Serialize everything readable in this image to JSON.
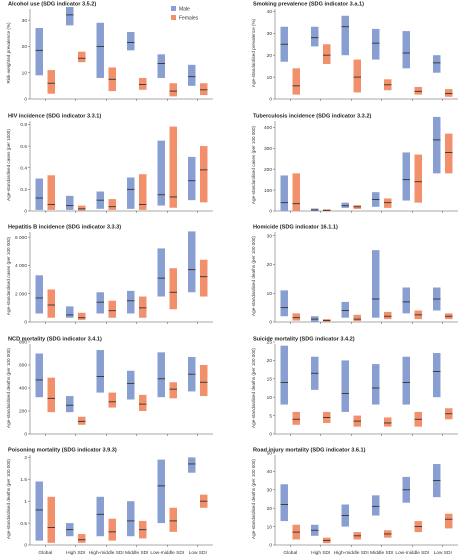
{
  "legend": {
    "male": "Male",
    "female": "Females"
  },
  "colors": {
    "male": "#8a9fd1",
    "female": "#f3906c",
    "median": "#333333"
  },
  "categories": [
    "Global",
    "High SDI",
    "High-middle SDI",
    "Middle SDI",
    "Low-middle SDI",
    "Low SDI"
  ],
  "chart_data": [
    {
      "type": "range",
      "title": "Alcohol use (SDG indicator 3.5.2)",
      "ylabel": "Risk-weighted prevalence (%)",
      "yticks": [
        0,
        10,
        20,
        30
      ],
      "ylim": [
        0,
        35
      ],
      "series": [
        {
          "name": "Male",
          "ranges": [
            [
              9,
              27,
              18.5
            ],
            [
              28,
              35,
              32
            ],
            [
              8,
              29,
              20
            ],
            [
              18.5,
              25.5,
              21.5
            ],
            [
              8,
              17,
              13.5
            ],
            [
              5,
              13,
              8.5
            ]
          ]
        },
        {
          "name": "Females",
          "ranges": [
            [
              2,
              11,
              6
            ],
            [
              14,
              18,
              15.5
            ],
            [
              3,
              12,
              7.5
            ],
            [
              3.5,
              8,
              5.5
            ],
            [
              1,
              6,
              3
            ],
            [
              1.5,
              6,
              3.5
            ]
          ]
        }
      ]
    },
    {
      "type": "range",
      "title": "Smoking prevalence (SDG indicator 3.a.1)",
      "ylabel": "Age-standardised prevalence (%)",
      "yticks": [
        0,
        10,
        20,
        30,
        40
      ],
      "ylim": [
        0,
        42
      ],
      "series": [
        {
          "name": "Male",
          "ranges": [
            [
              17,
              33,
              25
            ],
            [
              24,
              33,
              28
            ],
            [
              20,
              38,
              33
            ],
            [
              18,
              32,
              25.5
            ],
            [
              14,
              31,
              21
            ],
            [
              12,
              20,
              16.5
            ]
          ]
        },
        {
          "name": "Females",
          "ranges": [
            [
              2,
              14,
              6
            ],
            [
              16,
              25,
              20
            ],
            [
              3,
              18,
              10
            ],
            [
              4,
              9,
              6.5
            ],
            [
              2,
              5.5,
              3.5
            ],
            [
              1,
              4.5,
              2.5
            ]
          ]
        }
      ]
    },
    {
      "type": "range",
      "title": "HIV incidence (SDG indicator 3.3.1)",
      "ylabel": "Age-standardised cases (per 1000)",
      "yticks": [
        0,
        0.2,
        0.4,
        0.6,
        0.8
      ],
      "ylim": [
        0,
        0.85
      ],
      "series": [
        {
          "name": "Male",
          "ranges": [
            [
              0.01,
              0.3,
              0.12
            ],
            [
              0.01,
              0.14,
              0.05
            ],
            [
              0.02,
              0.18,
              0.1
            ],
            [
              0.02,
              0.31,
              0.2
            ],
            [
              0.05,
              0.65,
              0.15
            ],
            [
              0.1,
              0.5,
              0.28
            ]
          ]
        },
        {
          "name": "Females",
          "ranges": [
            [
              0.01,
              0.33,
              0.06
            ],
            [
              0.005,
              0.05,
              0.02
            ],
            [
              0.01,
              0.11,
              0.04
            ],
            [
              0.01,
              0.34,
              0.06
            ],
            [
              0.03,
              0.78,
              0.13
            ],
            [
              0.08,
              0.6,
              0.38
            ]
          ]
        }
      ]
    },
    {
      "type": "range",
      "title": "Tuberculosis incidence (SDG indicator 3.3.2)",
      "ylabel": "Age-standardised cases (per 100 000)",
      "yticks": [
        0,
        100,
        200,
        300,
        400
      ],
      "ylim": [
        0,
        440
      ],
      "series": [
        {
          "name": "Male",
          "ranges": [
            [
              0,
              170,
              40
            ],
            [
              2,
              12,
              5
            ],
            [
              15,
              40,
              25
            ],
            [
              20,
              90,
              55
            ],
            [
              50,
              280,
              150
            ],
            [
              180,
              450,
              340
            ]
          ]
        },
        {
          "name": "Females",
          "ranges": [
            [
              0,
              180,
              35
            ],
            [
              1,
              8,
              3
            ],
            [
              10,
              28,
              20
            ],
            [
              15,
              60,
              40
            ],
            [
              40,
              270,
              140
            ],
            [
              180,
              370,
              280
            ]
          ]
        }
      ]
    },
    {
      "type": "range",
      "title": "Hepatitis B incidence (SDG indicator 3.3.3)",
      "ylabel": "Age-standardised cases (per 100 000)",
      "yticks": [
        0,
        2000,
        4000,
        6000
      ],
      "ylim": [
        0,
        6500
      ],
      "series": [
        {
          "name": "Male",
          "ranges": [
            [
              600,
              3300,
              1700
            ],
            [
              300,
              1100,
              500
            ],
            [
              600,
              2100,
              1400
            ],
            [
              600,
              2200,
              1500
            ],
            [
              1800,
              5200,
              3100
            ],
            [
              2100,
              6400,
              3700
            ]
          ]
        },
        {
          "name": "Females",
          "ranges": [
            [
              300,
              2300,
              1200
            ],
            [
              150,
              650,
              300
            ],
            [
              300,
              1500,
              800
            ],
            [
              300,
              1800,
              1000
            ],
            [
              900,
              3800,
              2100
            ],
            [
              1800,
              4400,
              3200
            ]
          ]
        }
      ]
    },
    {
      "type": "range",
      "title": "Homicide (SDG indicator 16.1.1)",
      "ylabel": "Age-standardised deaths (per 100 000)",
      "yticks": [
        0,
        10,
        20,
        30
      ],
      "ylim": [
        0,
        32
      ],
      "series": [
        {
          "name": "Male",
          "ranges": [
            [
              2,
              11,
              5
            ],
            [
              0,
              2,
              1
            ],
            [
              1.5,
              7,
              4
            ],
            [
              1.5,
              25,
              8
            ],
            [
              3,
              12,
              7
            ],
            [
              4,
              12,
              8
            ]
          ]
        },
        {
          "name": "Females",
          "ranges": [
            [
              0.5,
              3,
              1.5
            ],
            [
              0,
              1,
              0.5
            ],
            [
              0.3,
              2.5,
              1
            ],
            [
              1,
              3.5,
              2
            ],
            [
              1,
              4,
              2.5
            ],
            [
              1,
              3,
              2
            ]
          ]
        }
      ]
    },
    {
      "type": "range",
      "title": "NCD mortality (SDG indicator 3.4.1)",
      "ylabel": "Age-standardised deaths (per 100 000)",
      "yticks": [
        0,
        200,
        400,
        600,
        800
      ],
      "ylim": [
        0,
        800
      ],
      "series": [
        {
          "name": "Male",
          "ranges": [
            [
              320,
              700,
              470
            ],
            [
              190,
              330,
              250
            ],
            [
              360,
              730,
              500
            ],
            [
              300,
              550,
              440
            ],
            [
              320,
              710,
              480
            ],
            [
              370,
              670,
              520
            ]
          ]
        },
        {
          "name": "Females",
          "ranges": [
            [
              190,
              490,
              310
            ],
            [
              80,
              150,
              110
            ],
            [
              230,
              360,
              280
            ],
            [
              200,
              340,
              260
            ],
            [
              310,
              450,
              390
            ],
            [
              330,
              600,
              450
            ]
          ]
        }
      ]
    },
    {
      "type": "range",
      "title": "Suicide mortality (SDG indicator 3.4.2)",
      "ylabel": "Age-standardised deaths (per 100 000)",
      "yticks": [
        0,
        5,
        10,
        15,
        20,
        25
      ],
      "ylim": [
        0,
        25
      ],
      "series": [
        {
          "name": "Male",
          "ranges": [
            [
              8,
              24,
              14
            ],
            [
              12,
              21,
              16.5
            ],
            [
              6,
              20,
              11
            ],
            [
              8,
              19,
              12.5
            ],
            [
              8,
              21,
              14
            ],
            [
              10,
              22,
              17
            ]
          ]
        },
        {
          "name": "Females",
          "ranges": [
            [
              2.5,
              6,
              4
            ],
            [
              3,
              6,
              4.5
            ],
            [
              2,
              5,
              3.5
            ],
            [
              2,
              4.5,
              3
            ],
            [
              2,
              6,
              4
            ],
            [
              4,
              7,
              5.5
            ]
          ]
        }
      ]
    },
    {
      "type": "range",
      "title": "Poisoning mortality (SDG indicator 3.9.3)",
      "ylabel": "Age-standardised deaths (per 100 000)",
      "yticks": [
        0,
        0.5,
        1.0,
        1.5,
        2.0
      ],
      "ylim": [
        0,
        2.1
      ],
      "series": [
        {
          "name": "Male",
          "ranges": [
            [
              0.1,
              1.45,
              0.8
            ],
            [
              0.2,
              0.5,
              0.35
            ],
            [
              0.2,
              1.1,
              0.7
            ],
            [
              0.2,
              1.0,
              0.55
            ],
            [
              0.5,
              1.95,
              1.35
            ],
            [
              1.65,
              2.0,
              1.85
            ]
          ]
        },
        {
          "name": "Females",
          "ranges": [
            [
              0.05,
              1.1,
              0.4
            ],
            [
              0.05,
              0.25,
              0.12
            ],
            [
              0.1,
              0.6,
              0.3
            ],
            [
              0.15,
              0.55,
              0.35
            ],
            [
              0.3,
              0.85,
              0.55
            ],
            [
              0.85,
              1.15,
              1.0
            ]
          ]
        }
      ]
    },
    {
      "type": "range",
      "title": "Road injury mortality (SDG indicator 3.6.1)",
      "ylabel": "Age-standardised deaths (per 100 000)",
      "yticks": [
        0,
        10,
        20,
        30,
        40,
        50
      ],
      "ylim": [
        0,
        50
      ],
      "series": [
        {
          "name": "Male",
          "ranges": [
            [
              13,
              33,
              22
            ],
            [
              5,
              11,
              8
            ],
            [
              10,
              22,
              16
            ],
            [
              16,
              27,
              21
            ],
            [
              23,
              37,
              30
            ],
            [
              26,
              44,
              35
            ]
          ]
        },
        {
          "name": "Females",
          "ranges": [
            [
              3,
              11,
              7
            ],
            [
              1,
              4,
              2.5
            ],
            [
              3,
              7,
              5
            ],
            [
              4,
              8,
              6
            ],
            [
              7,
              13,
              10
            ],
            [
              9,
              17,
              14
            ]
          ]
        }
      ]
    }
  ]
}
